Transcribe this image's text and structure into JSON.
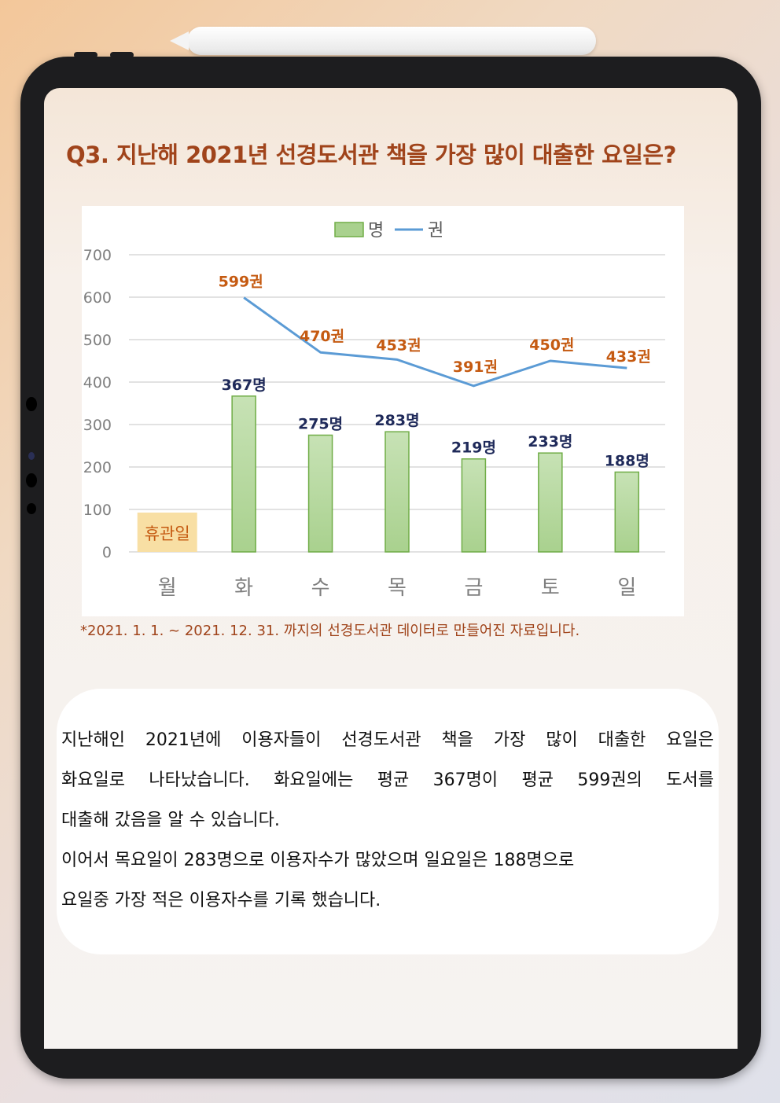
{
  "question": "Q3. 지난해 2021년 선경도서관 책을 가장 많이 대출한 요일은?",
  "chart_data": {
    "type": "bar+line",
    "categories": [
      "월",
      "화",
      "수",
      "목",
      "금",
      "토",
      "일"
    ],
    "series": [
      {
        "name": "명",
        "type": "bar",
        "values": [
          null,
          367,
          275,
          283,
          219,
          233,
          188
        ],
        "labels": [
          "",
          "367명",
          "275명",
          "283명",
          "219명",
          "233명",
          "188명"
        ]
      },
      {
        "name": "권",
        "type": "line",
        "values": [
          null,
          599,
          470,
          453,
          391,
          450,
          433
        ],
        "labels": [
          "",
          "599권",
          "470권",
          "453권",
          "391권",
          "450권",
          "433권"
        ]
      }
    ],
    "ylim": [
      0,
      700
    ],
    "yticks": [
      0,
      100,
      200,
      300,
      400,
      500,
      600,
      700
    ],
    "closed_label": "휴관일",
    "grid": true,
    "legend": "top-center",
    "colors": {
      "bar": "#a9d18e",
      "bar_edge": "#70ad47",
      "line": "#5b9bd5",
      "line_label": "#c55a11",
      "bar_label": "#1f2a5a",
      "closed_bg": "#f8dfa4",
      "closed_text": "#c55a11"
    }
  },
  "footnote": "*2021. 1. 1. ~ 2021. 12. 31. 까지의 선경도서관 데이터로 만들어진 자료입니다.",
  "summary": [
    "지난해인 2021년에 이용자들이 선경도서관 책을 가장 많이 대출한 요일은",
    "화요일로 나타났습니다. 화요일에는 평균 367명이 평균 599권의 도서를",
    "대출해 갔음을 알 수 있습니다.",
    "이어서 목요일이 283명으로 이용자수가 많았으며 일요일은 188명으로",
    "요일중 가장 적은 이용자수를 기록 했습니다."
  ]
}
